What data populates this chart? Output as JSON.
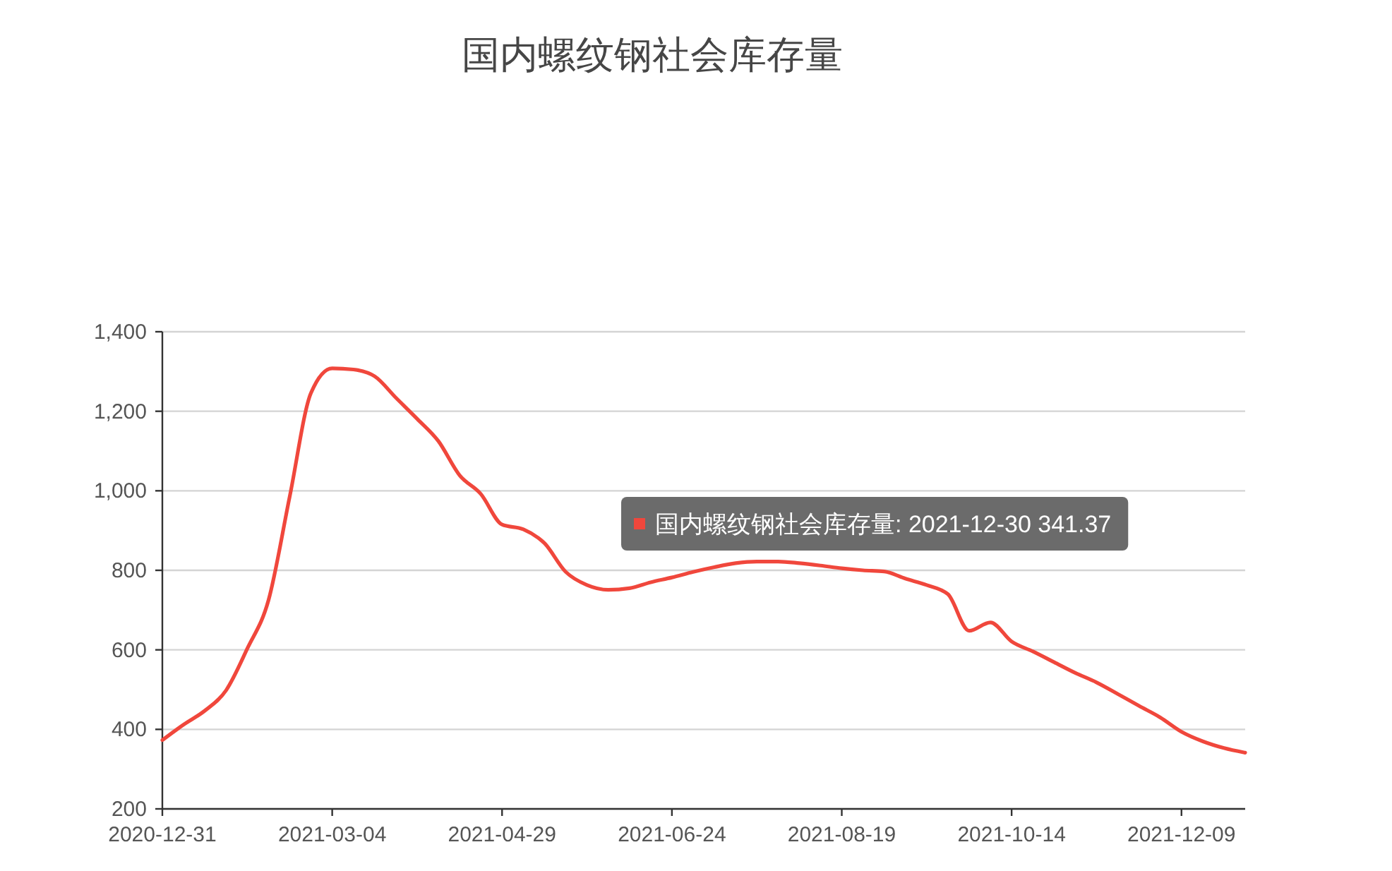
{
  "chart_data": {
    "type": "line",
    "title": "国内螺纹钢社会库存量",
    "categories": [
      "2020-12-31",
      null,
      null,
      null,
      null,
      null,
      null,
      null,
      "2021-03-04",
      null,
      null,
      null,
      null,
      null,
      null,
      null,
      "2021-04-29",
      null,
      null,
      null,
      null,
      null,
      null,
      null,
      "2021-06-24",
      null,
      null,
      null,
      null,
      null,
      null,
      null,
      "2021-08-19",
      null,
      null,
      null,
      null,
      null,
      null,
      null,
      "2021-10-14",
      null,
      null,
      null,
      null,
      null,
      null,
      null,
      "2021-12-09",
      null,
      null,
      null
    ],
    "series": [
      {
        "color": "#f0473c",
        "values": [
          373,
          412,
          447,
          498,
          603,
          725,
          986,
          1246,
          1308,
          1305,
          1288,
          1234,
          1181,
          1125,
          1039,
          992,
          915,
          903,
          868,
          796,
          763,
          751,
          755,
          770,
          782,
          796,
          808,
          818,
          822,
          822,
          818,
          812,
          805,
          800,
          797,
          779,
          763,
          740,
          648,
          669,
          621,
          596,
          569,
          542,
          518,
          489,
          459,
          430,
          394,
          370,
          353,
          341.37
        ]
      }
    ],
    "ylim": [
      200,
      1400
    ],
    "yticks": [
      200,
      400,
      600,
      800,
      {
        "value": 1000,
        "label": "1,000"
      },
      {
        "value": 1200,
        "label": "1,200"
      },
      {
        "value": 1400,
        "label": "1,400"
      }
    ],
    "grid": "y",
    "line_style": "solid",
    "annotations": [
      "国内螺纹钢社会库存量: 2021-12-30 341.37"
    ]
  }
}
